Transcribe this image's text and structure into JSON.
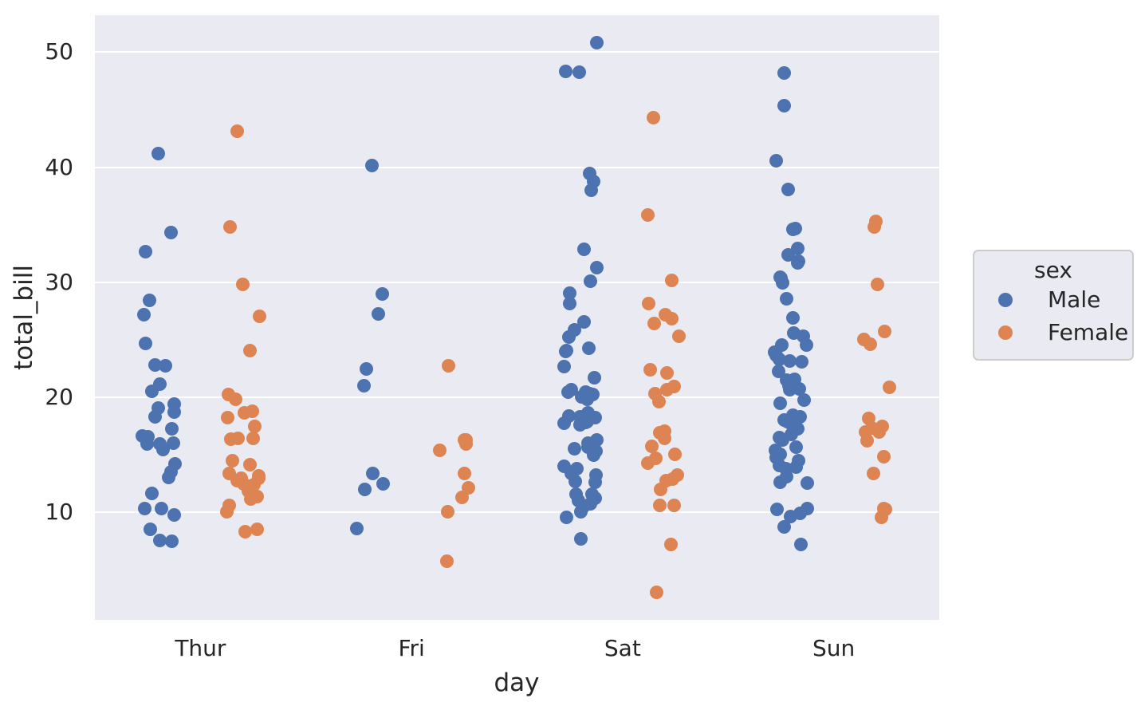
{
  "figure": {
    "background": "#ffffff",
    "panel_background": "#eaeaf2",
    "grid_color": "#ffffff",
    "text_color": "#262626"
  },
  "chart_data": {
    "type": "scatter",
    "variant": "strip-plot (jittered categorical scatter, dodged by hue)",
    "title": "",
    "xlabel": "day",
    "ylabel": "total_bill",
    "categories": [
      "Thur",
      "Fri",
      "Sat",
      "Sun"
    ],
    "yticks": [
      10,
      20,
      30,
      40,
      50
    ],
    "ylim": [
      0.68,
      53.2
    ],
    "xlim": [
      -0.5,
      3.5
    ],
    "grid": "horizontal gridlines only",
    "legend": {
      "title": "sex",
      "position": "outside-right",
      "entries": [
        {
          "label": "Male",
          "color": "#4c72b0"
        },
        {
          "label": "Female",
          "color": "#dd8452"
        }
      ]
    },
    "marker_size_px": 17,
    "dodge_offset_units": 0.2,
    "jitter_units": 0.08,
    "series": [
      {
        "name": "Male",
        "color": "#4c72b0",
        "values_by_category": {
          "Thur": [
            27.2,
            22.76,
            17.29,
            19.44,
            16.66,
            32.68,
            15.98,
            13.03,
            18.28,
            24.71,
            21.16,
            11.69,
            14.26,
            15.95,
            8.52,
            22.82,
            19.08,
            10.33,
            16.0,
            34.3,
            41.19,
            9.78,
            7.51,
            28.44,
            15.48,
            16.58,
            7.56,
            10.34,
            13.51,
            18.71,
            20.53
          ],
          "Fri": [
            28.97,
            22.49,
            40.17,
            27.28,
            12.03,
            21.01,
            12.46,
            8.58,
            13.42
          ],
          "Sat": [
            20.65,
            17.92,
            39.42,
            19.82,
            17.81,
            13.37,
            12.69,
            21.7,
            9.55,
            18.35,
            17.78,
            24.06,
            16.31,
            18.69,
            31.27,
            16.04,
            38.01,
            11.24,
            48.27,
            20.29,
            13.81,
            11.02,
            18.29,
            17.59,
            20.08,
            20.23,
            15.01,
            10.51,
            17.92,
            15.36,
            20.49,
            25.21,
            18.24,
            14.0,
            26.59,
            38.73,
            24.27,
            30.06,
            25.89,
            48.33,
            28.15,
            11.59,
            7.74,
            50.81,
            15.81,
            20.45,
            13.28,
            24.01,
            15.69,
            11.61,
            10.77,
            15.53,
            10.07,
            12.6,
            32.83,
            29.03,
            22.67,
            17.82
          ],
          "Sun": [
            10.34,
            21.01,
            23.68,
            25.29,
            8.77,
            26.88,
            15.04,
            14.78,
            10.27,
            15.42,
            18.43,
            21.58,
            16.29,
            17.46,
            13.94,
            9.68,
            30.4,
            18.29,
            22.23,
            32.4,
            28.55,
            18.04,
            12.54,
            9.94,
            25.56,
            19.49,
            38.07,
            23.95,
            29.93,
            14.07,
            13.13,
            17.26,
            24.55,
            19.77,
            48.17,
            16.49,
            21.5,
            12.66,
            13.81,
            24.52,
            20.76,
            31.71,
            31.85,
            16.82,
            32.9,
            17.89,
            14.48,
            34.63,
            34.65,
            23.33,
            45.35,
            23.17,
            40.55,
            20.69,
            30.46,
            23.1,
            15.69,
            7.25
          ]
        }
      },
      {
        "name": "Female",
        "color": "#dd8452",
        "values_by_category": {
          "Thur": [
            10.07,
            34.83,
            10.65,
            12.43,
            24.08,
            13.42,
            12.48,
            29.8,
            14.52,
            11.38,
            20.27,
            11.17,
            12.26,
            18.26,
            8.51,
            14.15,
            13.16,
            17.47,
            27.05,
            16.43,
            8.35,
            18.64,
            11.87,
            43.11,
            13.0,
            12.74,
            13.0,
            16.4,
            16.47,
            19.81,
            18.78
          ],
          "Fri": [
            5.75,
            16.32,
            22.75,
            11.35,
            15.38,
            12.16,
            13.42,
            15.98,
            16.27,
            10.09
          ],
          "Sat": [
            20.29,
            15.77,
            19.65,
            15.06,
            20.69,
            16.93,
            26.41,
            16.45,
            3.07,
            12.02,
            17.07,
            26.86,
            25.28,
            14.73,
            44.3,
            22.42,
            20.92,
            14.31,
            7.25,
            10.59,
            10.63,
            12.76,
            13.27,
            28.17,
            12.9,
            30.14,
            22.12,
            35.83,
            27.18
          ],
          "Sun": [
            16.99,
            24.59,
            35.26,
            14.83,
            10.33,
            16.97,
            10.29,
            34.81,
            25.71,
            17.31,
            29.85,
            25.0,
            13.39,
            16.21,
            17.51,
            9.6,
            20.9,
            18.15
          ]
        }
      }
    ]
  }
}
